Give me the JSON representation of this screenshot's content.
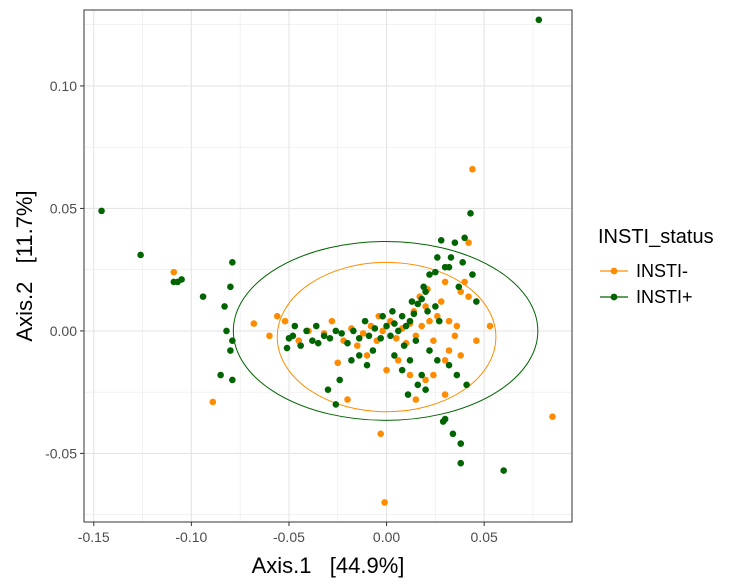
{
  "chart_data": {
    "type": "scatter",
    "title": "",
    "xlabel": "Axis.1   [44.9%]",
    "ylabel": "Axis.2   [11.7%]",
    "xlim": [
      -0.155,
      0.095
    ],
    "ylim": [
      -0.078,
      0.131
    ],
    "x_ticks": [
      -0.15,
      -0.1,
      -0.05,
      0.0,
      0.05
    ],
    "x_tick_labels": [
      "-0.15",
      "-0.10",
      "-0.05",
      "0.00",
      "0.05"
    ],
    "y_ticks": [
      -0.05,
      0.0,
      0.05,
      0.1
    ],
    "y_tick_labels": [
      "-0.05",
      "0.00",
      "0.05",
      "0.10"
    ],
    "grid": true,
    "legend": {
      "title": "INSTI_status",
      "position": "right",
      "entries": [
        "INSTI-",
        "INSTI+"
      ]
    },
    "series": [
      {
        "name": "INSTI-",
        "color": "#ff8c00",
        "ellipse": {
          "cx": 0.0,
          "cy": -0.0025,
          "rx": 0.056,
          "ry": 0.0305
        },
        "points": [
          [
            0.044,
            0.066
          ],
          [
            0.042,
            0.036
          ],
          [
            -0.109,
            0.024
          ],
          [
            -0.089,
            -0.029
          ],
          [
            0.085,
            -0.035
          ],
          [
            -0.003,
            -0.042
          ],
          [
            -0.001,
            -0.07
          ],
          [
            0.053,
            0.002
          ],
          [
            0.046,
            -0.004
          ],
          [
            0.038,
            0.016
          ],
          [
            0.04,
            0.02
          ],
          [
            0.03,
            0.02
          ],
          [
            0.028,
            0.012
          ],
          [
            0.026,
            0.006
          ],
          [
            0.022,
            0.004
          ],
          [
            0.02,
            0.01
          ],
          [
            0.018,
            0.002
          ],
          [
            0.015,
            -0.002
          ],
          [
            0.012,
            0.003
          ],
          [
            0.01,
            -0.005
          ],
          [
            0.008,
            0.001
          ],
          [
            0.005,
            -0.003
          ],
          [
            0.002,
            0.004
          ],
          [
            -0.002,
            0.0
          ],
          [
            -0.005,
            -0.004
          ],
          [
            -0.008,
            0.002
          ],
          [
            -0.012,
            -0.001
          ],
          [
            -0.015,
            -0.006
          ],
          [
            -0.018,
            0.001
          ],
          [
            -0.022,
            -0.004
          ],
          [
            -0.025,
            -0.013
          ],
          [
            -0.032,
            -0.001
          ],
          [
            -0.04,
            0.0
          ],
          [
            -0.045,
            -0.004
          ],
          [
            -0.052,
            0.004
          ],
          [
            -0.056,
            0.006
          ],
          [
            -0.06,
            -0.002
          ],
          [
            -0.068,
            0.003
          ],
          [
            0.035,
            -0.002
          ],
          [
            0.032,
            -0.008
          ],
          [
            0.03,
            -0.012
          ],
          [
            0.02,
            -0.02
          ],
          [
            0.015,
            -0.028
          ],
          [
            0.012,
            -0.018
          ],
          [
            0.024,
            -0.018
          ],
          [
            0.03,
            -0.026
          ],
          [
            0.038,
            -0.01
          ],
          [
            -0.02,
            -0.028
          ],
          [
            -0.01,
            -0.01
          ],
          [
            0.006,
            -0.012
          ],
          [
            0.0,
            -0.016
          ],
          [
            0.014,
            0.008
          ],
          [
            0.017,
            0.014
          ],
          [
            0.021,
            0.017
          ],
          [
            0.024,
            -0.004
          ],
          [
            0.032,
            0.004
          ],
          [
            -0.004,
            0.006
          ],
          [
            -0.028,
            0.004
          ],
          [
            0.042,
            0.014
          ],
          [
            0.036,
            0.002
          ]
        ]
      },
      {
        "name": "INSTI+",
        "color": "#006400",
        "ellipse": {
          "cx": -0.0005,
          "cy": 0.0,
          "rx": 0.078,
          "ry": 0.0365
        },
        "points": [
          [
            0.078,
            0.127
          ],
          [
            -0.146,
            0.049
          ],
          [
            -0.126,
            0.031
          ],
          [
            -0.109,
            0.02
          ],
          [
            -0.107,
            0.02
          ],
          [
            -0.105,
            0.021
          ],
          [
            -0.094,
            0.014
          ],
          [
            -0.083,
            0.01
          ],
          [
            -0.079,
            0.028
          ],
          [
            -0.082,
            0.0
          ],
          [
            -0.079,
            -0.004
          ],
          [
            -0.08,
            -0.008
          ],
          [
            -0.085,
            -0.018
          ],
          [
            -0.079,
            -0.02
          ],
          [
            -0.08,
            0.018
          ],
          [
            0.06,
            -0.057
          ],
          [
            0.038,
            -0.054
          ],
          [
            0.038,
            -0.046
          ],
          [
            0.034,
            -0.042
          ],
          [
            0.03,
            -0.036
          ],
          [
            0.029,
            -0.037
          ],
          [
            0.043,
            0.048
          ],
          [
            0.04,
            0.038
          ],
          [
            0.028,
            0.037
          ],
          [
            0.026,
            0.03
          ],
          [
            0.035,
            0.036
          ],
          [
            0.03,
            0.026
          ],
          [
            0.032,
            0.026
          ],
          [
            0.025,
            0.024
          ],
          [
            0.022,
            0.023
          ],
          [
            0.02,
            0.016
          ],
          [
            0.018,
            0.013
          ],
          [
            0.016,
            0.011
          ],
          [
            0.014,
            0.007
          ],
          [
            0.012,
            0.004
          ],
          [
            0.01,
            0.002
          ],
          [
            0.008,
            0.006
          ],
          [
            0.006,
            0.0
          ],
          [
            0.004,
            0.003
          ],
          [
            0.002,
            -0.002
          ],
          [
            0.0,
            0.002
          ],
          [
            -0.003,
            -0.003
          ],
          [
            -0.006,
            0.001
          ],
          [
            -0.009,
            -0.002
          ],
          [
            -0.011,
            0.004
          ],
          [
            -0.014,
            -0.003
          ],
          [
            -0.017,
            0.0
          ],
          [
            -0.02,
            -0.005
          ],
          [
            -0.023,
            -0.001
          ],
          [
            -0.026,
            0.0
          ],
          [
            -0.029,
            -0.003
          ],
          [
            -0.032,
            -0.002
          ],
          [
            -0.035,
            -0.005
          ],
          [
            -0.038,
            -0.004
          ],
          [
            -0.041,
            0.0
          ],
          [
            -0.044,
            -0.006
          ],
          [
            -0.047,
            0.002
          ],
          [
            -0.05,
            -0.003
          ],
          [
            -0.051,
            -0.007
          ],
          [
            -0.048,
            -0.002
          ],
          [
            0.041,
            -0.022
          ],
          [
            0.036,
            -0.018
          ],
          [
            0.032,
            -0.014
          ],
          [
            0.026,
            -0.012
          ],
          [
            0.018,
            -0.018
          ],
          [
            0.016,
            -0.022
          ],
          [
            0.012,
            -0.012
          ],
          [
            0.008,
            -0.016
          ],
          [
            0.004,
            -0.01
          ],
          [
            -0.01,
            -0.014
          ],
          [
            -0.014,
            -0.01
          ],
          [
            -0.024,
            -0.02
          ],
          [
            -0.03,
            -0.024
          ],
          [
            -0.026,
            -0.03
          ],
          [
            0.022,
            -0.008
          ],
          [
            0.027,
            0.004
          ],
          [
            0.021,
            0.008
          ],
          [
            0.015,
            -0.004
          ],
          [
            0.009,
            -0.006
          ],
          [
            0.003,
            0.008
          ],
          [
            -0.002,
            0.006
          ],
          [
            -0.007,
            -0.008
          ],
          [
            0.025,
            0.01
          ],
          [
            0.019,
            0.018
          ],
          [
            0.013,
            0.012
          ],
          [
            0.044,
            0.023
          ],
          [
            0.046,
            0.012
          ],
          [
            0.037,
            0.018
          ],
          [
            0.033,
            0.03
          ],
          [
            -0.018,
            -0.012
          ],
          [
            -0.036,
            0.002
          ],
          [
            0.011,
            -0.026
          ],
          [
            0.02,
            -0.024
          ],
          [
            0.039,
            0.028
          ]
        ]
      }
    ]
  }
}
